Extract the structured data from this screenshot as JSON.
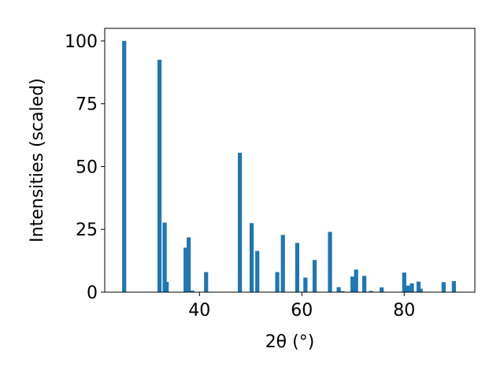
{
  "chart_data": {
    "type": "bar",
    "xlabel": "2θ (°)",
    "ylabel": "Intensities (scaled)",
    "xlim": [
      21.5,
      93.8
    ],
    "ylim": [
      0,
      105
    ],
    "xticks": [
      40,
      60,
      80
    ],
    "yticks": [
      0,
      25,
      50,
      75,
      100
    ],
    "grid": false,
    "bar_color": "#1f77b4",
    "bar_width": 0.8,
    "peaks": [
      {
        "x": 25.3,
        "y": 100
      },
      {
        "x": 32.2,
        "y": 92.5
      },
      {
        "x": 33.2,
        "y": 27.7
      },
      {
        "x": 33.6,
        "y": 4.1
      },
      {
        "x": 37.3,
        "y": 17.7
      },
      {
        "x": 37.9,
        "y": 21.8
      },
      {
        "x": 38.6,
        "y": 0.6
      },
      {
        "x": 41.3,
        "y": 8.0
      },
      {
        "x": 47.9,
        "y": 55.5
      },
      {
        "x": 50.2,
        "y": 27.5
      },
      {
        "x": 51.3,
        "y": 16.4
      },
      {
        "x": 55.2,
        "y": 8.0
      },
      {
        "x": 56.3,
        "y": 22.8
      },
      {
        "x": 59.1,
        "y": 19.6
      },
      {
        "x": 60.7,
        "y": 5.8
      },
      {
        "x": 62.5,
        "y": 12.8
      },
      {
        "x": 65.5,
        "y": 24.0
      },
      {
        "x": 67.2,
        "y": 2.0
      },
      {
        "x": 68.0,
        "y": 0.4
      },
      {
        "x": 69.9,
        "y": 6.2
      },
      {
        "x": 70.6,
        "y": 9.0
      },
      {
        "x": 72.2,
        "y": 6.5
      },
      {
        "x": 73.5,
        "y": 0.5
      },
      {
        "x": 75.6,
        "y": 1.9
      },
      {
        "x": 80.0,
        "y": 7.8
      },
      {
        "x": 80.7,
        "y": 2.6
      },
      {
        "x": 81.5,
        "y": 3.5
      },
      {
        "x": 82.8,
        "y": 4.2
      },
      {
        "x": 83.2,
        "y": 1.4
      },
      {
        "x": 87.7,
        "y": 4.0
      },
      {
        "x": 89.7,
        "y": 4.4
      }
    ]
  }
}
